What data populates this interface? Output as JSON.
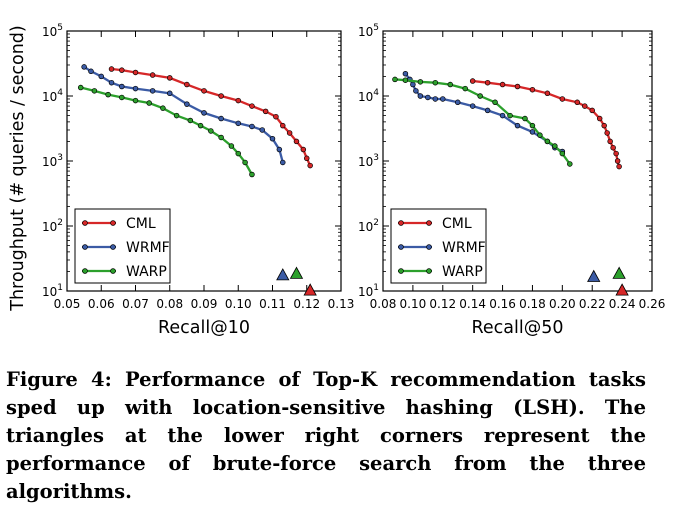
{
  "chart_data": [
    {
      "type": "line",
      "xlabel": "Recall@10",
      "ylabel": "Throughput (# queries / second)",
      "xlim": [
        0.05,
        0.13
      ],
      "ylim": [
        10,
        100000
      ],
      "yscale": "log",
      "xticks": [
        "0.05",
        "0.06",
        "0.07",
        "0.08",
        "0.09",
        "0.10",
        "0.11",
        "0.12",
        "0.13"
      ],
      "yticks": [
        "10^1",
        "10^2",
        "10^3",
        "10^4",
        "10^5"
      ],
      "legend_position": "lower-left",
      "series": [
        {
          "name": "CML",
          "color": "#d62728",
          "x": [
            0.063,
            0.066,
            0.07,
            0.075,
            0.08,
            0.085,
            0.09,
            0.095,
            0.1,
            0.104,
            0.108,
            0.111,
            0.113,
            0.115,
            0.117,
            0.119,
            0.12,
            0.121
          ],
          "y": [
            26000,
            25000,
            23000,
            21000,
            19000,
            15000,
            12000,
            10000,
            8500,
            7000,
            5800,
            4800,
            3500,
            2700,
            2000,
            1500,
            1100,
            850
          ]
        },
        {
          "name": "WRMF",
          "color": "#3b5ba5",
          "x": [
            0.055,
            0.057,
            0.06,
            0.063,
            0.066,
            0.07,
            0.075,
            0.08,
            0.085,
            0.09,
            0.095,
            0.1,
            0.104,
            0.107,
            0.11,
            0.112,
            0.113
          ],
          "y": [
            28000,
            24000,
            20000,
            16000,
            14000,
            13000,
            12000,
            11000,
            7500,
            5500,
            4500,
            3800,
            3400,
            3000,
            2200,
            1500,
            950
          ]
        },
        {
          "name": "WARP",
          "color": "#2ca02c",
          "x": [
            0.054,
            0.058,
            0.062,
            0.066,
            0.07,
            0.074,
            0.078,
            0.082,
            0.086,
            0.089,
            0.092,
            0.095,
            0.098,
            0.1,
            0.102,
            0.104
          ],
          "y": [
            13500,
            12000,
            10500,
            9500,
            8500,
            7800,
            6500,
            5000,
            4200,
            3500,
            2900,
            2300,
            1700,
            1300,
            950,
            620
          ]
        }
      ],
      "brute_force": [
        {
          "name": "WRMF",
          "color": "#3b5ba5",
          "x": 0.113,
          "y": 18
        },
        {
          "name": "WARP",
          "color": "#2ca02c",
          "x": 0.117,
          "y": 19
        },
        {
          "name": "CML",
          "color": "#d62728",
          "x": 0.121,
          "y": 10.5
        }
      ]
    },
    {
      "type": "line",
      "xlabel": "Recall@50",
      "ylabel": "",
      "xlim": [
        0.08,
        0.26
      ],
      "ylim": [
        10,
        100000
      ],
      "yscale": "log",
      "xticks": [
        "0.08",
        "0.10",
        "0.12",
        "0.14",
        "0.16",
        "0.18",
        "0.20",
        "0.22",
        "0.24",
        "0.26"
      ],
      "xtick_text": "0.080.100.120.140.160.180.200.220.240.26",
      "yticks": [
        "10^1",
        "10^2",
        "10^3",
        "10^4",
        "10^5"
      ],
      "legend_position": "lower-left",
      "series": [
        {
          "name": "CML",
          "color": "#d62728",
          "x": [
            0.14,
            0.15,
            0.16,
            0.17,
            0.18,
            0.19,
            0.2,
            0.21,
            0.215,
            0.22,
            0.225,
            0.228,
            0.23,
            0.232,
            0.234,
            0.236,
            0.237,
            0.238
          ],
          "y": [
            17000,
            16000,
            15000,
            14000,
            12500,
            11000,
            9000,
            8000,
            7000,
            6000,
            4500,
            3500,
            2700,
            2000,
            1600,
            1300,
            1000,
            820
          ]
        },
        {
          "name": "WRMF",
          "color": "#3b5ba5",
          "x": [
            0.095,
            0.098,
            0.1,
            0.102,
            0.105,
            0.11,
            0.115,
            0.12,
            0.13,
            0.14,
            0.15,
            0.16,
            0.17,
            0.18,
            0.19,
            0.195,
            0.2
          ],
          "y": [
            22000,
            18000,
            15000,
            12000,
            10000,
            9500,
            9000,
            9000,
            8000,
            7000,
            6000,
            5000,
            3500,
            2800,
            2000,
            1600,
            1400
          ]
        },
        {
          "name": "WARP",
          "color": "#2ca02c",
          "x": [
            0.088,
            0.095,
            0.105,
            0.115,
            0.125,
            0.135,
            0.145,
            0.155,
            0.165,
            0.175,
            0.18,
            0.185,
            0.19,
            0.195,
            0.2,
            0.205
          ],
          "y": [
            18000,
            17500,
            16500,
            16000,
            15000,
            13000,
            10000,
            8000,
            5000,
            4500,
            3500,
            2500,
            2000,
            1700,
            1300,
            900
          ]
        }
      ],
      "brute_force": [
        {
          "name": "WRMF",
          "color": "#3b5ba5",
          "x": 0.221,
          "y": 17
        },
        {
          "name": "WARP",
          "color": "#2ca02c",
          "x": 0.238,
          "y": 19
        },
        {
          "name": "CML",
          "color": "#d62728",
          "x": 0.24,
          "y": 10.5
        }
      ]
    }
  ],
  "caption": "Figure 4: Performance of Top-K recommendation tasks sped up with location-sensitive hashing (LSH). The triangles at the lower right corners represent the performance of brute-force search from the three algorithms."
}
